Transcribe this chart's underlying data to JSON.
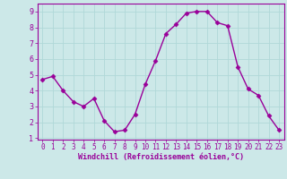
{
  "x": [
    0,
    1,
    2,
    3,
    4,
    5,
    6,
    7,
    8,
    9,
    10,
    11,
    12,
    13,
    14,
    15,
    16,
    17,
    18,
    19,
    20,
    21,
    22,
    23
  ],
  "y": [
    4.7,
    4.9,
    4.0,
    3.3,
    3.0,
    3.5,
    2.1,
    1.4,
    1.5,
    2.5,
    4.4,
    5.9,
    7.6,
    8.2,
    8.9,
    9.0,
    9.0,
    8.3,
    8.1,
    5.5,
    4.1,
    3.7,
    2.4,
    1.5
  ],
  "line_color": "#990099",
  "marker": "D",
  "marker_size": 2.5,
  "bg_color": "#cce8e8",
  "grid_color": "#b0d8d8",
  "xlabel": "Windchill (Refroidissement éolien,°C)",
  "xlabel_color": "#990099",
  "tick_color": "#990099",
  "xlim": [
    -0.5,
    23.5
  ],
  "ylim": [
    0.9,
    9.5
  ],
  "yticks": [
    1,
    2,
    3,
    4,
    5,
    6,
    7,
    8,
    9
  ],
  "xticks": [
    0,
    1,
    2,
    3,
    4,
    5,
    6,
    7,
    8,
    9,
    10,
    11,
    12,
    13,
    14,
    15,
    16,
    17,
    18,
    19,
    20,
    21,
    22,
    23
  ],
  "linewidth": 1.0
}
